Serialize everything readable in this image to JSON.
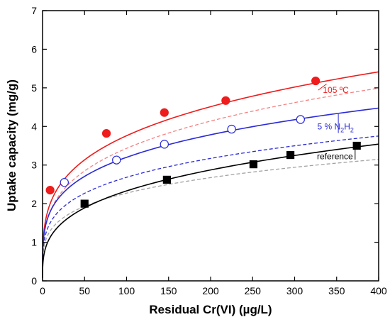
{
  "chart_data": {
    "type": "scatter",
    "xlabel": "Residual Cr(VI) (µg/L)",
    "ylabel": "Uptake capacity (mg/g)",
    "xlim": [
      0,
      400
    ],
    "ylim": [
      0,
      7
    ],
    "xticks": [
      0,
      50,
      100,
      150,
      200,
      250,
      300,
      350,
      400
    ],
    "yticks": [
      0,
      1,
      2,
      3,
      4,
      5,
      6,
      7
    ],
    "grid": false,
    "series": [
      {
        "name": "105 °C",
        "color": "#ee1c1c",
        "marker": "filled-circle",
        "points": [
          [
            9,
            2.35
          ],
          [
            76,
            3.82
          ],
          [
            145,
            4.36
          ],
          [
            218,
            4.67
          ],
          [
            325,
            5.18
          ]
        ],
        "fit_solid": {
          "a": 1.12,
          "b": 0.263
        },
        "fit_dashed": {
          "a": 0.99,
          "b": 0.27
        }
      },
      {
        "name": "5 % N2H2",
        "color": "#2a2ad6",
        "marker": "open-circle",
        "points": [
          [
            26,
            2.55
          ],
          [
            88,
            3.13
          ],
          [
            145,
            3.54
          ],
          [
            225,
            3.93
          ],
          [
            307,
            4.18
          ]
        ],
        "fit_solid": {
          "a": 1.05,
          "b": 0.242
        },
        "fit_dashed": {
          "a": 0.88,
          "b": 0.242
        }
      },
      {
        "name": "reference",
        "color": "#000000",
        "marker": "filled-square",
        "points": [
          [
            50,
            2.0
          ],
          [
            148,
            2.62
          ],
          [
            251,
            3.02
          ],
          [
            295,
            3.26
          ],
          [
            374,
            3.5
          ]
        ],
        "fit_solid": {
          "a": 0.58,
          "b": 0.302
        },
        "fit_dashed": {
          "a": 0.77,
          "b": 0.235
        }
      }
    ],
    "annotations": [
      {
        "text": "105 ºC",
        "color": "#ee1c1c"
      },
      {
        "text": "5 % N",
        "sub": "2",
        "text2": "H",
        "sub2": "2",
        "color": "#2a2ad6"
      },
      {
        "text": "reference",
        "color": "#000000"
      }
    ]
  }
}
